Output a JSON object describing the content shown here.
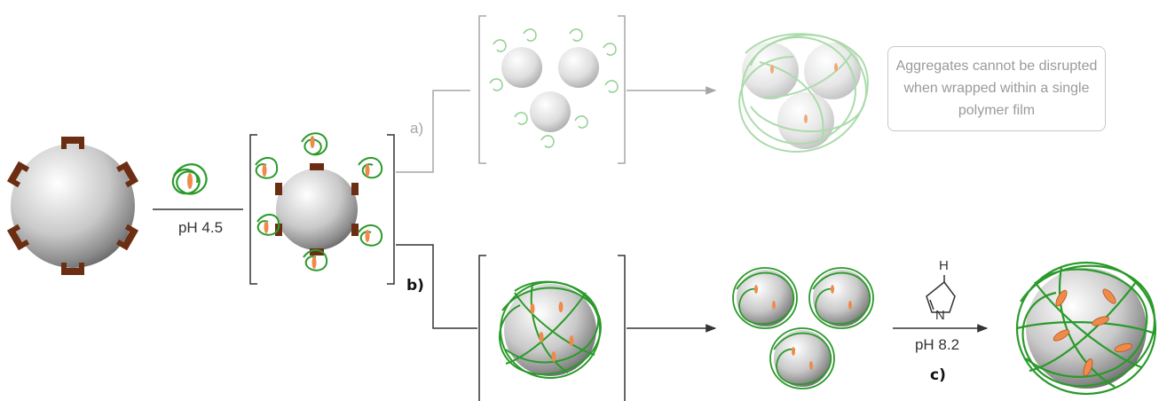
{
  "labels": {
    "ph_acid": "pH 4.5",
    "ph_base": "pH 8.2",
    "path_a": "a)",
    "path_b": "b)",
    "path_c": "c)",
    "note": "Aggregates cannot be disrupted when wrapped within a single polymer film",
    "imidazole_h": "H",
    "imidazole_n": "N"
  },
  "colors": {
    "polymer_green": "#2a9a2a",
    "faded_green": "#8fcf8f",
    "anchor_brown": "#6b2e12",
    "payload_orange": "#ef8a4a",
    "line_dark": "#333333",
    "line_gray": "#a6a6a6",
    "note_text": "#9a9a9a"
  }
}
